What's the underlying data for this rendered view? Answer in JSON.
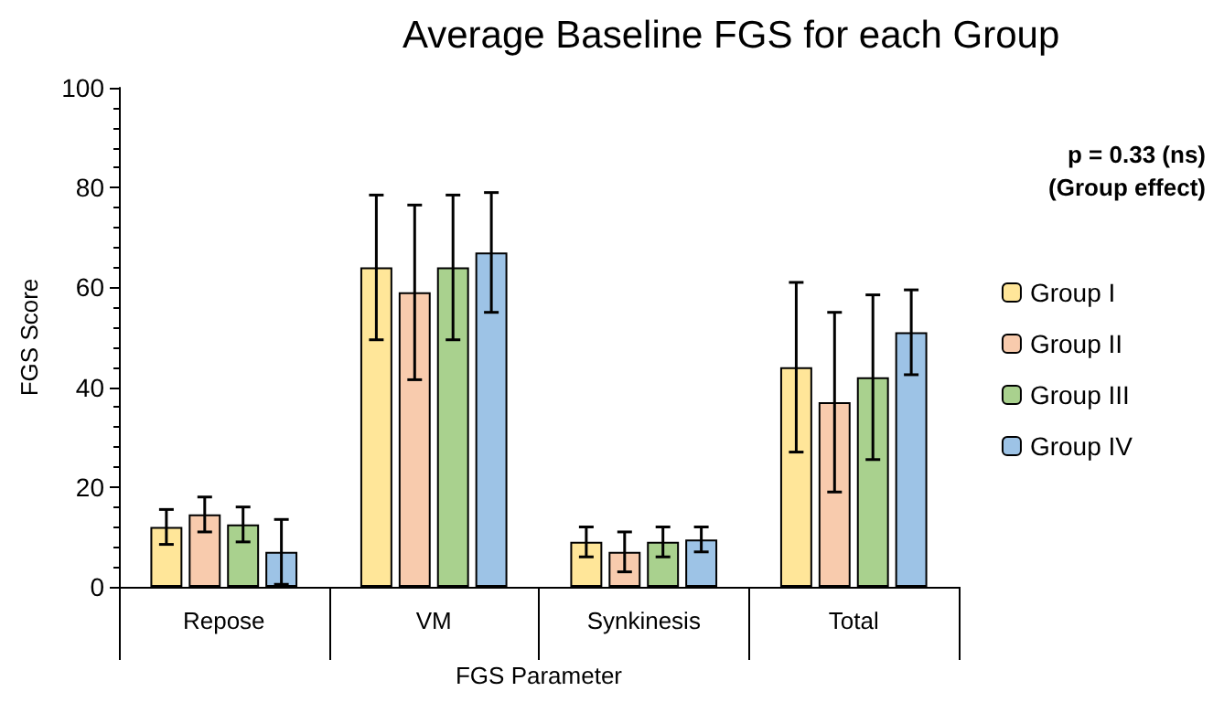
{
  "chart_data": {
    "type": "bar",
    "title": "Average Baseline FGS for each Group",
    "xlabel": "FGS Parameter",
    "ylabel": "FGS Score",
    "categories": [
      "Repose",
      "VM",
      "Synkinesis",
      "Total"
    ],
    "series": [
      {
        "name": "Group I",
        "color": "#ffe699",
        "values": [
          12,
          64,
          9,
          44
        ],
        "errors": [
          3.5,
          14.5,
          3,
          17
        ]
      },
      {
        "name": "Group II",
        "color": "#f8cbad",
        "values": [
          14.5,
          59,
          7,
          37
        ],
        "errors": [
          3.5,
          17.5,
          4,
          18
        ]
      },
      {
        "name": "Group III",
        "color": "#a9d18e",
        "values": [
          12.5,
          64,
          9,
          42
        ],
        "errors": [
          3.5,
          14.5,
          3,
          16.5
        ]
      },
      {
        "name": "Group IV",
        "color": "#9dc3e6",
        "values": [
          7,
          67,
          9.5,
          51
        ],
        "errors": [
          6.5,
          12,
          2.5,
          8.5
        ]
      }
    ],
    "ylim": [
      0,
      100
    ],
    "yticks": [
      0,
      20,
      40,
      60,
      80,
      100
    ],
    "grid": false,
    "legend": "right",
    "annotations": [
      "p = 0.33 (ns)",
      "(Group effect)"
    ]
  }
}
